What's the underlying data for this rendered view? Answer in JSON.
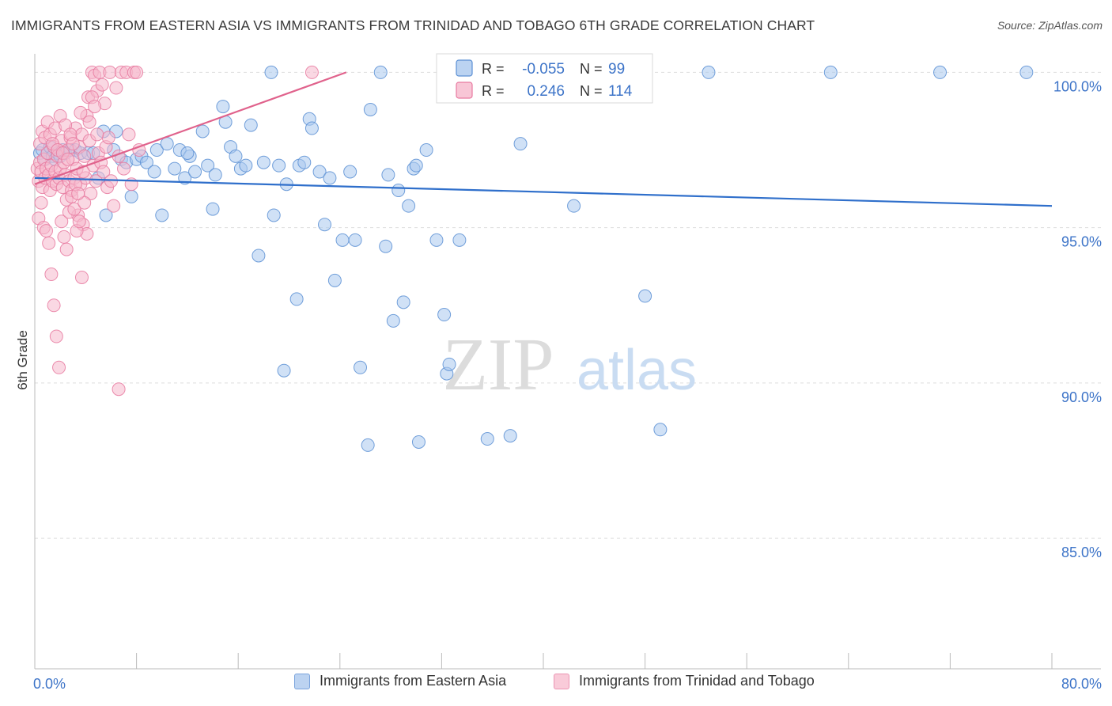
{
  "title": "IMMIGRANTS FROM EASTERN ASIA VS IMMIGRANTS FROM TRINIDAD AND TOBAGO 6TH GRADE CORRELATION CHART",
  "source": "Source: ZipAtlas.com",
  "watermark": {
    "zip": "ZIP",
    "atlas": "atlas"
  },
  "chart_data": {
    "type": "scatter",
    "xlabel": "",
    "ylabel": "6th Grade",
    "xlim": [
      0,
      80
    ],
    "ylim": [
      80.8,
      100.8
    ],
    "x_tick_labels": [
      {
        "value": 0,
        "label": "0.0%"
      },
      {
        "value": 80,
        "label": "80.0%"
      }
    ],
    "x_minor_ticks": [
      0,
      8,
      16,
      24,
      32,
      40,
      48,
      56,
      64,
      72,
      80
    ],
    "y_ticks": [
      {
        "value": 100,
        "label": "100.0%"
      },
      {
        "value": 95,
        "label": "95.0%"
      },
      {
        "value": 90,
        "label": "90.0%"
      },
      {
        "value": 85,
        "label": "85.0%"
      }
    ],
    "grid": true,
    "stats_legend": {
      "r_label": "R =",
      "n_label": "N =",
      "rows": [
        {
          "series": "Immigrants from Eastern Asia",
          "r": "-0.055",
          "n": "99"
        },
        {
          "series": "Immigrants from Trinidad and Tobago",
          "r": "0.246",
          "n": "114"
        }
      ]
    },
    "series": [
      {
        "name": "Immigrants from Eastern Asia",
        "fill": "#aac8ee",
        "stroke": "#5b8fd4",
        "line_color": "#2f6fcb",
        "trend": {
          "x0": 0,
          "y0": 96.6,
          "x1": 80,
          "y1": 95.7
        },
        "points": [
          [
            0.4,
            97.4
          ],
          [
            0.6,
            97.5
          ],
          [
            0.8,
            97.2
          ],
          [
            1.0,
            97.4
          ],
          [
            1.2,
            97.6
          ],
          [
            1.4,
            97.3
          ],
          [
            1.6,
            97.2
          ],
          [
            1.8,
            97.4
          ],
          [
            2.0,
            97.3
          ],
          [
            2.2,
            97.5
          ],
          [
            2.4,
            97.4
          ],
          [
            2.8,
            97.5
          ],
          [
            3.2,
            97.5
          ],
          [
            3.6,
            97.4
          ],
          [
            4.2,
            97.4
          ],
          [
            4.6,
            97.4
          ],
          [
            5.0,
            96.6
          ],
          [
            5.4,
            98.1
          ],
          [
            5.6,
            95.4
          ],
          [
            6.2,
            97.5
          ],
          [
            6.4,
            98.1
          ],
          [
            6.8,
            97.2
          ],
          [
            7.2,
            97.1
          ],
          [
            7.6,
            96.0
          ],
          [
            8.0,
            97.2
          ],
          [
            8.4,
            97.3
          ],
          [
            8.8,
            97.1
          ],
          [
            9.4,
            96.8
          ],
          [
            9.6,
            97.5
          ],
          [
            10.0,
            95.4
          ],
          [
            10.4,
            97.7
          ],
          [
            11.0,
            96.9
          ],
          [
            11.4,
            97.5
          ],
          [
            11.8,
            96.6
          ],
          [
            12.2,
            97.3
          ],
          [
            12.6,
            96.8
          ],
          [
            13.2,
            98.1
          ],
          [
            13.6,
            97.0
          ],
          [
            14.0,
            95.6
          ],
          [
            14.2,
            96.7
          ],
          [
            14.8,
            98.9
          ],
          [
            15.0,
            98.4
          ],
          [
            15.4,
            97.6
          ],
          [
            15.8,
            97.3
          ],
          [
            16.2,
            96.9
          ],
          [
            16.6,
            97.0
          ],
          [
            17.0,
            98.3
          ],
          [
            17.6,
            94.1
          ],
          [
            18.0,
            97.1
          ],
          [
            18.6,
            100.0
          ],
          [
            18.8,
            95.4
          ],
          [
            19.2,
            97.0
          ],
          [
            19.6,
            90.4
          ],
          [
            19.8,
            96.4
          ],
          [
            20.6,
            92.7
          ],
          [
            20.8,
            97.0
          ],
          [
            21.2,
            97.1
          ],
          [
            21.6,
            98.5
          ],
          [
            21.8,
            98.2
          ],
          [
            22.4,
            96.8
          ],
          [
            22.8,
            95.1
          ],
          [
            23.2,
            96.6
          ],
          [
            23.6,
            93.3
          ],
          [
            24.2,
            94.6
          ],
          [
            24.8,
            96.8
          ],
          [
            25.2,
            94.6
          ],
          [
            25.6,
            90.5
          ],
          [
            26.2,
            88.0
          ],
          [
            26.4,
            98.8
          ],
          [
            27.2,
            100.0
          ],
          [
            27.6,
            94.4
          ],
          [
            27.8,
            96.7
          ],
          [
            28.2,
            92.0
          ],
          [
            28.6,
            96.2
          ],
          [
            29.0,
            92.6
          ],
          [
            29.4,
            95.7
          ],
          [
            29.8,
            96.9
          ],
          [
            30.2,
            88.1
          ],
          [
            30.8,
            97.5
          ],
          [
            31.6,
            94.6
          ],
          [
            32.2,
            92.2
          ],
          [
            32.4,
            90.3
          ],
          [
            32.6,
            90.6
          ],
          [
            33.4,
            94.6
          ],
          [
            35.6,
            88.2
          ],
          [
            37.0,
            100.0
          ],
          [
            37.4,
            88.3
          ],
          [
            38.2,
            97.7
          ],
          [
            39.6,
            100.0
          ],
          [
            42.4,
            95.7
          ],
          [
            43.8,
            100.0
          ],
          [
            48.0,
            92.8
          ],
          [
            49.2,
            88.5
          ],
          [
            53.0,
            100.0
          ],
          [
            62.6,
            100.0
          ],
          [
            71.2,
            100.0
          ],
          [
            78.0,
            100.0
          ],
          [
            30.0,
            97.0
          ],
          [
            12.0,
            97.4
          ]
        ]
      },
      {
        "name": "Immigrants from Trinidad and Tobago",
        "fill": "#f6b8cc",
        "stroke": "#e87aa0",
        "line_color": "#e0628c",
        "trend": {
          "x0": 0,
          "y0": 96.4,
          "x1": 24.5,
          "y1": 100.0
        },
        "points": [
          [
            0.2,
            96.9
          ],
          [
            0.3,
            96.5
          ],
          [
            0.4,
            97.1
          ],
          [
            0.5,
            96.8
          ],
          [
            0.6,
            96.3
          ],
          [
            0.7,
            97.2
          ],
          [
            0.8,
            96.6
          ],
          [
            0.9,
            96.9
          ],
          [
            1.0,
            97.4
          ],
          [
            1.1,
            96.7
          ],
          [
            1.2,
            96.2
          ],
          [
            1.3,
            97.0
          ],
          [
            1.4,
            96.5
          ],
          [
            1.5,
            97.6
          ],
          [
            1.6,
            96.8
          ],
          [
            1.7,
            96.4
          ],
          [
            1.8,
            97.3
          ],
          [
            1.9,
            96.6
          ],
          [
            2.0,
            96.9
          ],
          [
            2.1,
            97.8
          ],
          [
            2.2,
            96.3
          ],
          [
            2.3,
            97.1
          ],
          [
            2.4,
            96.7
          ],
          [
            2.5,
            95.9
          ],
          [
            2.6,
            97.5
          ],
          [
            2.7,
            96.5
          ],
          [
            2.8,
            97.9
          ],
          [
            2.9,
            96.2
          ],
          [
            3.0,
            97.2
          ],
          [
            3.1,
            96.6
          ],
          [
            3.2,
            98.2
          ],
          [
            3.3,
            96.9
          ],
          [
            3.4,
            95.4
          ],
          [
            3.5,
            97.6
          ],
          [
            3.6,
            96.4
          ],
          [
            3.7,
            98.0
          ],
          [
            3.8,
            95.1
          ],
          [
            3.9,
            97.3
          ],
          [
            4.0,
            96.6
          ],
          [
            4.1,
            94.8
          ],
          [
            4.2,
            99.2
          ],
          [
            4.3,
            97.8
          ],
          [
            4.4,
            96.1
          ],
          [
            4.5,
            100.0
          ],
          [
            4.6,
            97.0
          ],
          [
            4.7,
            99.9
          ],
          [
            4.8,
            96.5
          ],
          [
            4.9,
            99.4
          ],
          [
            5.0,
            97.4
          ],
          [
            5.1,
            100.0
          ],
          [
            5.2,
            97.1
          ],
          [
            5.3,
            99.6
          ],
          [
            5.4,
            96.8
          ],
          [
            5.5,
            99.0
          ],
          [
            5.6,
            97.6
          ],
          [
            5.7,
            96.3
          ],
          [
            5.8,
            97.9
          ],
          [
            5.9,
            100.0
          ],
          [
            6.0,
            96.5
          ],
          [
            6.2,
            95.7
          ],
          [
            6.4,
            99.5
          ],
          [
            6.6,
            97.3
          ],
          [
            6.8,
            100.0
          ],
          [
            7.0,
            96.9
          ],
          [
            7.2,
            100.0
          ],
          [
            7.4,
            98.0
          ],
          [
            7.6,
            96.4
          ],
          [
            7.8,
            100.0
          ],
          [
            0.3,
            95.3
          ],
          [
            0.5,
            95.8
          ],
          [
            0.7,
            95.0
          ],
          [
            0.9,
            94.9
          ],
          [
            1.1,
            94.5
          ],
          [
            1.3,
            93.5
          ],
          [
            1.5,
            92.5
          ],
          [
            1.7,
            91.5
          ],
          [
            1.9,
            90.5
          ],
          [
            2.1,
            95.2
          ],
          [
            2.3,
            94.7
          ],
          [
            2.5,
            94.3
          ],
          [
            2.7,
            95.5
          ],
          [
            2.9,
            96.0
          ],
          [
            3.1,
            95.6
          ],
          [
            3.3,
            94.9
          ],
          [
            3.5,
            95.2
          ],
          [
            3.7,
            93.4
          ],
          [
            3.9,
            95.8
          ],
          [
            4.1,
            98.6
          ],
          [
            4.3,
            98.4
          ],
          [
            4.5,
            99.2
          ],
          [
            4.7,
            98.9
          ],
          [
            4.9,
            98.0
          ],
          [
            6.6,
            89.8
          ],
          [
            8.0,
            100.0
          ],
          [
            8.2,
            97.5
          ],
          [
            0.4,
            97.7
          ],
          [
            0.6,
            98.1
          ],
          [
            0.8,
            97.9
          ],
          [
            1.0,
            98.4
          ],
          [
            1.2,
            98.0
          ],
          [
            1.4,
            97.7
          ],
          [
            1.6,
            98.2
          ],
          [
            1.8,
            97.5
          ],
          [
            2.0,
            98.6
          ],
          [
            2.2,
            97.4
          ],
          [
            2.4,
            98.3
          ],
          [
            2.6,
            97.2
          ],
          [
            2.8,
            98.0
          ],
          [
            3.0,
            97.7
          ],
          [
            3.2,
            96.4
          ],
          [
            3.4,
            96.1
          ],
          [
            3.6,
            98.7
          ],
          [
            3.8,
            96.8
          ],
          [
            21.8,
            100.0
          ]
        ]
      }
    ]
  }
}
